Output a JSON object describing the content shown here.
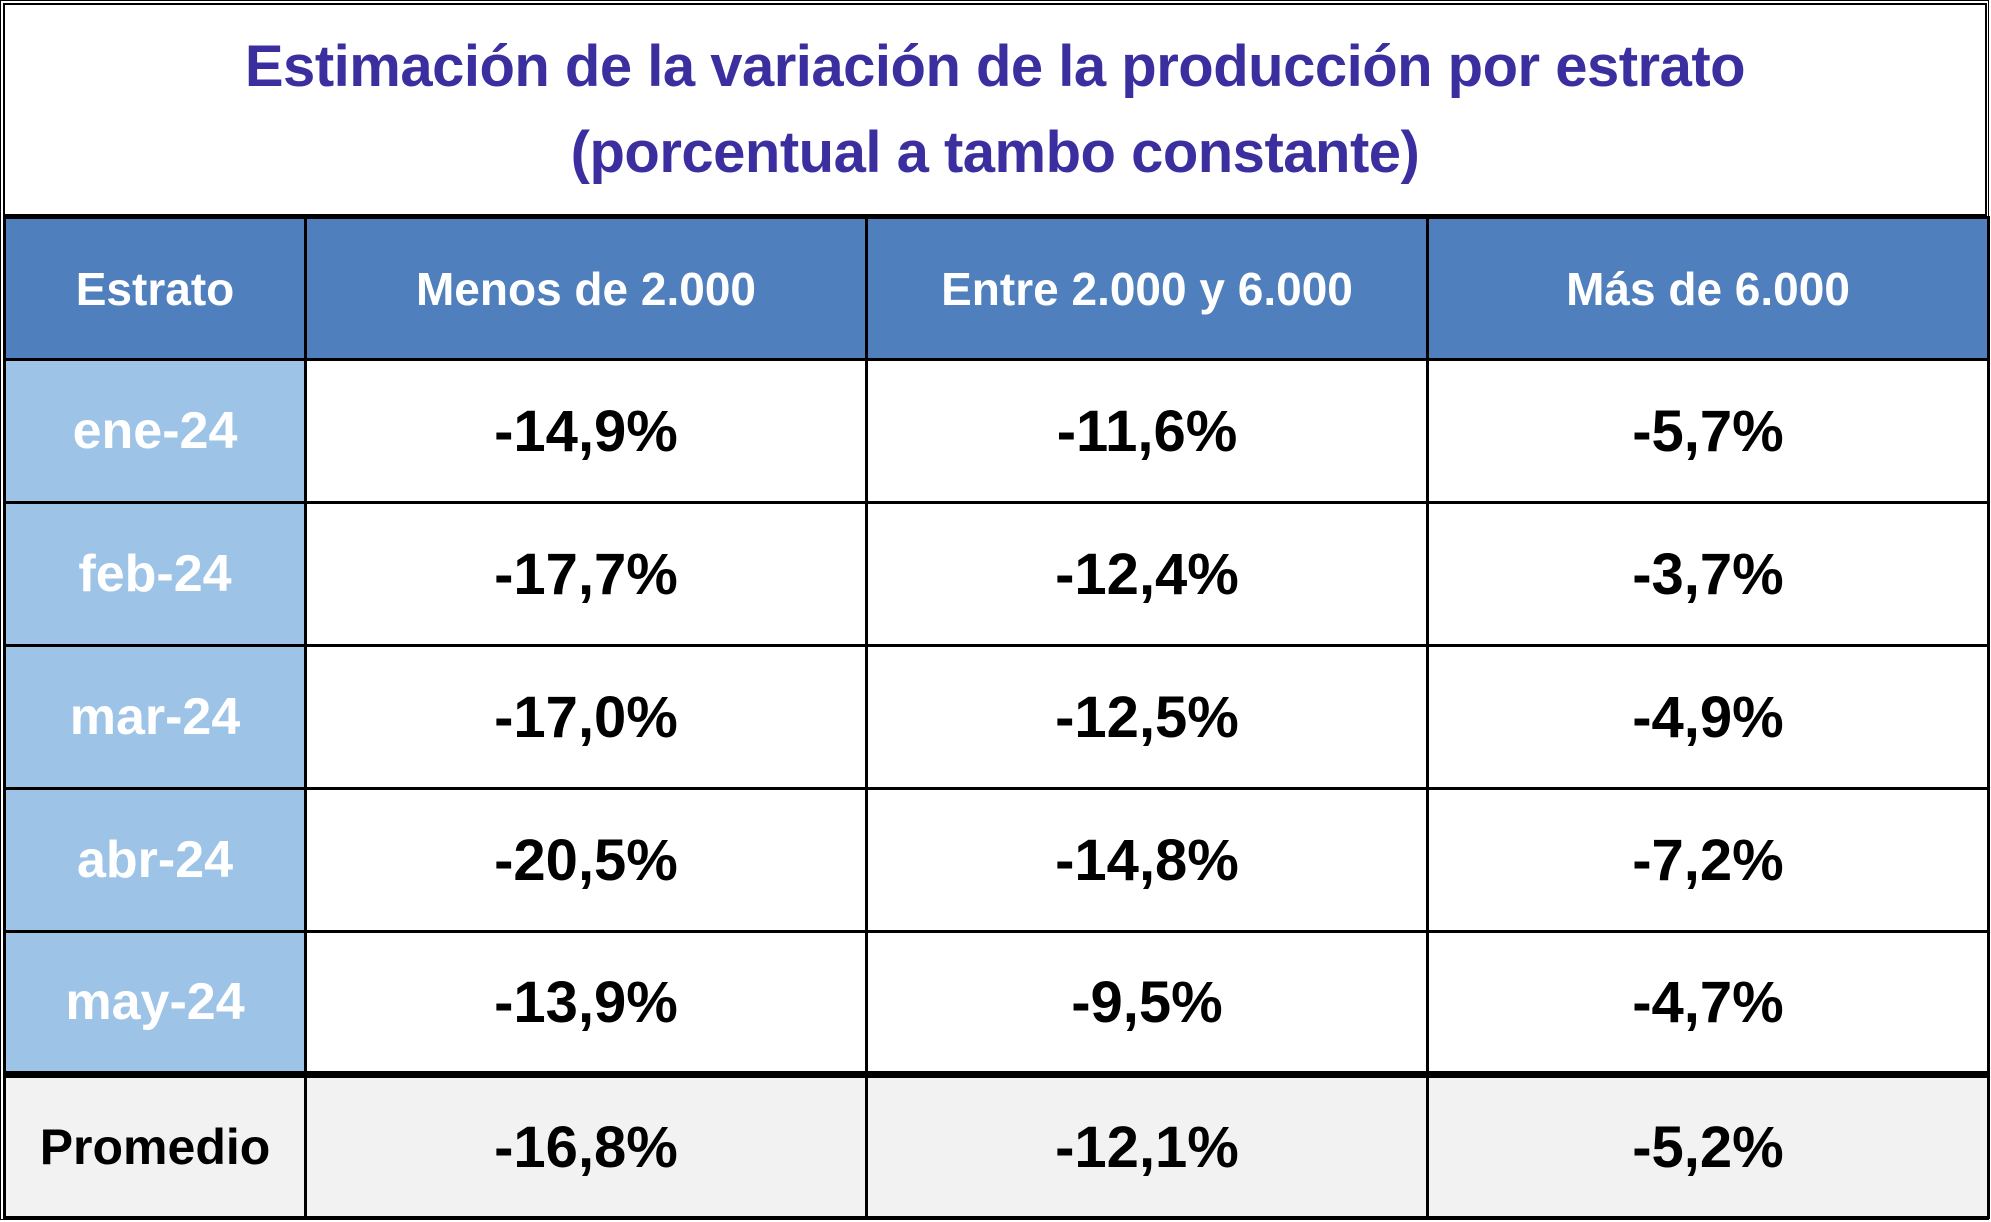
{
  "chart_data": {
    "type": "table",
    "title": "Estimación de la variación de la producción por estrato",
    "subtitle": "(porcentual a tambo constante)",
    "columns": [
      "Estrato",
      "Menos de 2.000",
      "Entre 2.000 y 6.000",
      "Más de 6.000"
    ],
    "rows": [
      {
        "label": "ene-24",
        "values": [
          "-14,9%",
          "-11,6%",
          "-5,7%"
        ]
      },
      {
        "label": "feb-24",
        "values": [
          "-17,7%",
          "-12,4%",
          "-3,7%"
        ]
      },
      {
        "label": "mar-24",
        "values": [
          "-17,0%",
          "-12,5%",
          "-4,9%"
        ]
      },
      {
        "label": "abr-24",
        "values": [
          "-20,5%",
          "-14,8%",
          "-7,2%"
        ]
      },
      {
        "label": "may-24",
        "values": [
          "-13,9%",
          "-9,5%",
          "-4,7%"
        ]
      }
    ],
    "summary": {
      "label": "Promedio",
      "values": [
        "-16,8%",
        "-12,1%",
        "-5,2%"
      ]
    }
  },
  "colors": {
    "title": "#3b2fa0",
    "header_bg": "#4f7fbd",
    "row_label_bg": "#9dc3e7",
    "summary_bg": "#f2f2f2"
  }
}
